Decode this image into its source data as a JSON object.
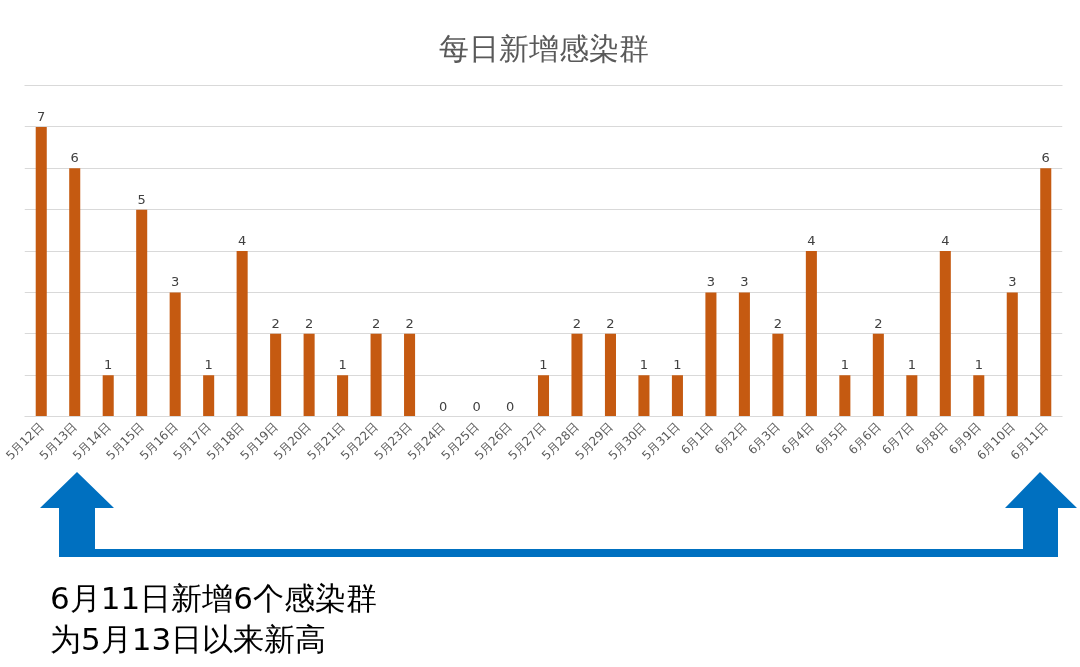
{
  "chart_data": {
    "type": "bar",
    "title": "每日新增感染群",
    "categories": [
      "5月12日",
      "5月13日",
      "5月14日",
      "5月15日",
      "5月16日",
      "5月17日",
      "5月18日",
      "5月19日",
      "5月20日",
      "5月21日",
      "5月22日",
      "5月23日",
      "5月24日",
      "5月25日",
      "5月26日",
      "5月27日",
      "5月28日",
      "5月29日",
      "5月30日",
      "5月31日",
      "6月1日",
      "6月2日",
      "6月3日",
      "6月4日",
      "6月5日",
      "6月6日",
      "6月7日",
      "6月8日",
      "6月9日",
      "6月10日",
      "6月11日"
    ],
    "values": [
      7,
      6,
      1,
      5,
      3,
      1,
      4,
      2,
      2,
      1,
      2,
      2,
      0,
      0,
      0,
      1,
      2,
      2,
      1,
      1,
      3,
      3,
      2,
      4,
      1,
      2,
      1,
      4,
      1,
      3,
      6
    ],
    "color": "#c55a11",
    "ylim": [
      0,
      8
    ],
    "yticks": [
      {
        "value": 0,
        "label": null
      },
      {
        "value": 1,
        "label": null
      },
      {
        "value": 2,
        "label": null
      },
      {
        "value": 3,
        "label": null
      },
      {
        "value": 4,
        "label": null
      },
      {
        "value": 5,
        "label": null
      },
      {
        "value": 6,
        "label": null
      },
      {
        "value": 7,
        "label": null
      },
      {
        "value": 8,
        "label": null
      }
    ],
    "grid": "y",
    "tick_labels": "x",
    "data_labels": true,
    "annotations": [
      "6月11日新增6个感染群",
      "为5月13日以来新高"
    ]
  }
}
